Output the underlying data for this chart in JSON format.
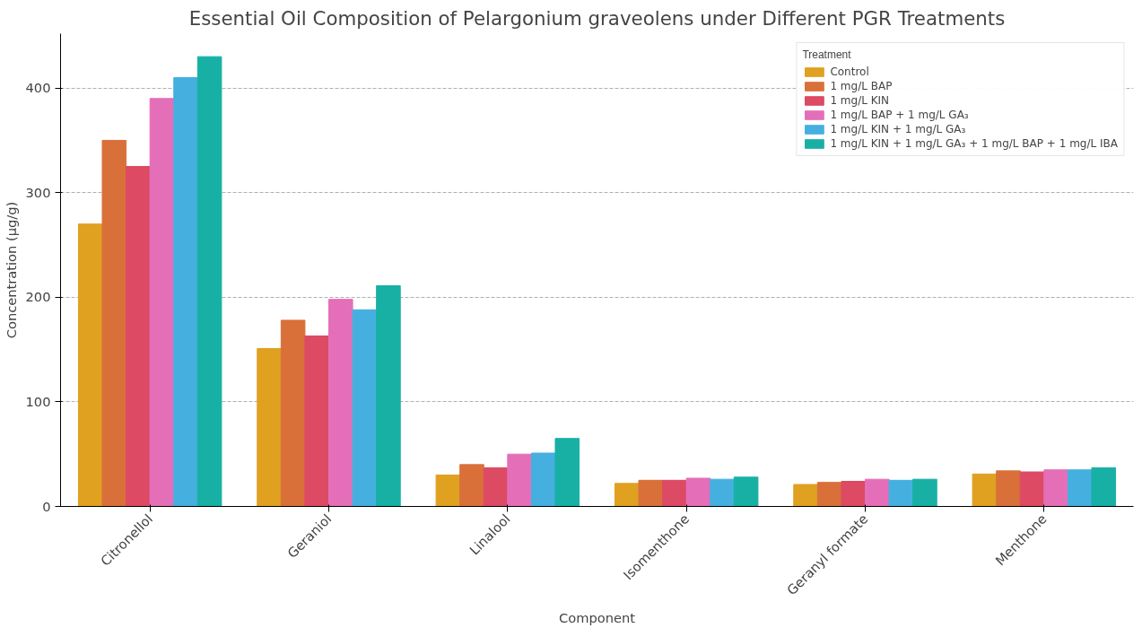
{
  "chart_data": {
    "type": "bar",
    "title": "Essential Oil Composition of Pelargonium graveolens under Different PGR Treatments",
    "xlabel": "Component",
    "ylabel": "Concentration (µg/g)",
    "legend_title": "Treatment",
    "categories": [
      "Citronellol",
      "Geraniol",
      "Linalool",
      "Isomenthone",
      "Geranyl formate",
      "Menthone"
    ],
    "series": [
      {
        "name": "Control",
        "color": "#e0a020",
        "values": [
          270,
          151,
          30,
          22,
          21,
          31
        ]
      },
      {
        "name": "1 mg/L BAP",
        "color": "#d9703a",
        "values": [
          350,
          178,
          40,
          25,
          23,
          34
        ]
      },
      {
        "name": "1 mg/L KIN",
        "color": "#dc4a64",
        "values": [
          325,
          163,
          37,
          25,
          24,
          33
        ]
      },
      {
        "name": "1 mg/L BAP + 1 mg/L GA₃",
        "color": "#e46fb8",
        "values": [
          390,
          198,
          50,
          27,
          26,
          35
        ]
      },
      {
        "name": "1 mg/L KIN + 1 mg/L GA₃",
        "color": "#45b0e0",
        "values": [
          410,
          188,
          51,
          26,
          25,
          35
        ]
      },
      {
        "name": "1 mg/L KIN + 1 mg/L GA₃ + 1 mg/L BAP + 1 mg/L IBA",
        "color": "#18b0a5",
        "values": [
          430,
          211,
          65,
          28,
          26,
          37
        ]
      }
    ],
    "ylim": [
      0,
      452
    ],
    "yticks": [
      0,
      100,
      200,
      300,
      400
    ],
    "grid": "y",
    "legend": "top right"
  }
}
